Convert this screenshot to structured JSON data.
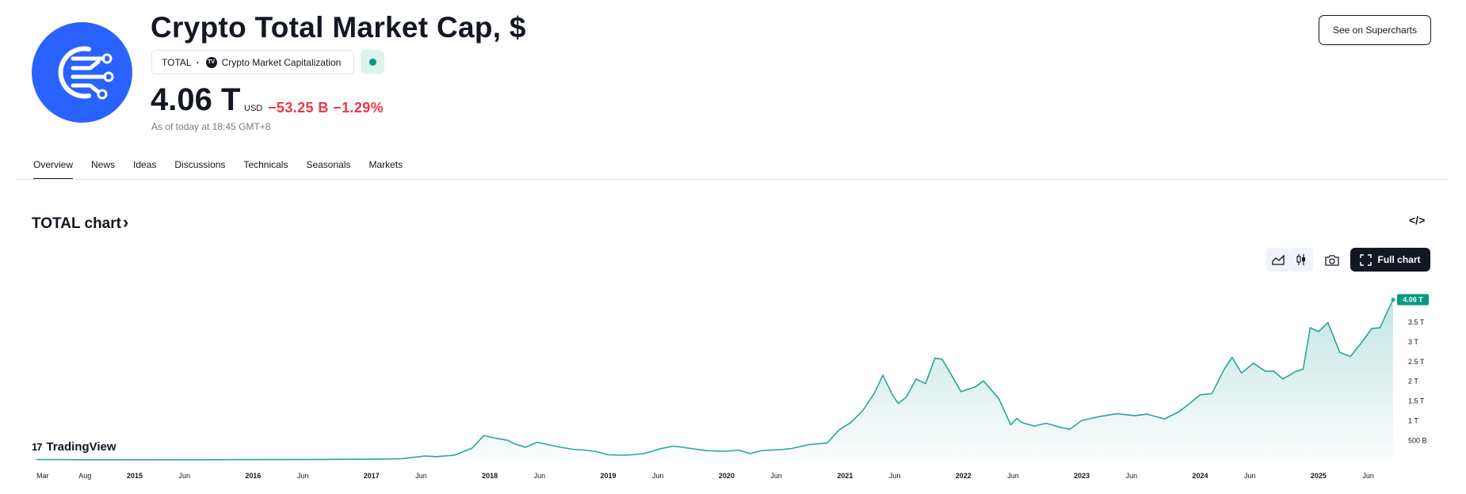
{
  "header": {
    "title": "Crypto Total Market Cap, $",
    "symbol": "TOTAL",
    "source": "Crypto Market Capitalization",
    "price": "4.06 T",
    "currency": "USD",
    "change": "−53.25 B −1.29%",
    "as_of": "As of today at 18:45 GMT+8",
    "supercharts_button": "See on Supercharts",
    "status_color": "#089981",
    "logo_color": "#2962ff"
  },
  "tabs": [
    {
      "label": "Overview"
    },
    {
      "label": "News"
    },
    {
      "label": "Ideas"
    },
    {
      "label": "Discussions"
    },
    {
      "label": "Technicals"
    },
    {
      "label": "Seasonals"
    },
    {
      "label": "Markets"
    }
  ],
  "section": {
    "title": "TOTAL chart",
    "chevron": "›",
    "embed_icon": "</>",
    "full_chart_label": "Full chart",
    "toolbar_icons": [
      "area-chart-icon",
      "candles-icon",
      "camera-icon",
      "fullscreen-icon"
    ]
  },
  "branding": {
    "tradingview": "TradingView"
  },
  "chart_data": {
    "type": "area",
    "title": "",
    "series_color": "#26a69a",
    "last_label": "4.06 T",
    "y_ticks": [
      {
        "value": 0.5,
        "label": "500 B"
      },
      {
        "value": 1.0,
        "label": "1 T"
      },
      {
        "value": 1.5,
        "label": "1.5 T"
      },
      {
        "value": 2.0,
        "label": "2 T"
      },
      {
        "value": 2.5,
        "label": "2.5 T"
      },
      {
        "value": 3.0,
        "label": "3 T"
      },
      {
        "value": 3.5,
        "label": "3.5 T"
      }
    ],
    "ylim": [
      0,
      4.15
    ],
    "xlim": [
      2014.17,
      2025.63
    ],
    "x_ticks": [
      {
        "value": 2014.17,
        "label": "Mar"
      },
      {
        "value": 2014.58,
        "label": "Aug"
      },
      {
        "value": 2015.0,
        "label": "2015"
      },
      {
        "value": 2015.42,
        "label": "Jun"
      },
      {
        "value": 2016.0,
        "label": "2016"
      },
      {
        "value": 2016.42,
        "label": "Jun"
      },
      {
        "value": 2017.0,
        "label": "2017"
      },
      {
        "value": 2017.42,
        "label": "Jun"
      },
      {
        "value": 2018.0,
        "label": "2018"
      },
      {
        "value": 2018.42,
        "label": "Jun"
      },
      {
        "value": 2019.0,
        "label": "2019"
      },
      {
        "value": 2019.42,
        "label": "Jun"
      },
      {
        "value": 2020.0,
        "label": "2020"
      },
      {
        "value": 2020.42,
        "label": "Jun"
      },
      {
        "value": 2021.0,
        "label": "2021"
      },
      {
        "value": 2021.42,
        "label": "Jun"
      },
      {
        "value": 2022.0,
        "label": "2022"
      },
      {
        "value": 2022.42,
        "label": "Jun"
      },
      {
        "value": 2023.0,
        "label": "2023"
      },
      {
        "value": 2023.42,
        "label": "Jun"
      },
      {
        "value": 2024.0,
        "label": "2024"
      },
      {
        "value": 2024.42,
        "label": "Jun"
      },
      {
        "value": 2025.0,
        "label": "2025"
      },
      {
        "value": 2025.42,
        "label": "Jun"
      }
    ],
    "points": [
      [
        2014.17,
        0.01
      ],
      [
        2014.6,
        0.006
      ],
      [
        2015.0,
        0.005
      ],
      [
        2015.5,
        0.006
      ],
      [
        2016.0,
        0.008
      ],
      [
        2016.5,
        0.012
      ],
      [
        2017.0,
        0.018
      ],
      [
        2017.25,
        0.03
      ],
      [
        2017.45,
        0.1
      ],
      [
        2017.55,
        0.085
      ],
      [
        2017.7,
        0.12
      ],
      [
        2017.85,
        0.3
      ],
      [
        2017.95,
        0.62
      ],
      [
        2018.05,
        0.55
      ],
      [
        2018.15,
        0.5
      ],
      [
        2018.2,
        0.42
      ],
      [
        2018.3,
        0.32
      ],
      [
        2018.4,
        0.45
      ],
      [
        2018.5,
        0.38
      ],
      [
        2018.6,
        0.32
      ],
      [
        2018.7,
        0.27
      ],
      [
        2018.8,
        0.25
      ],
      [
        2018.9,
        0.21
      ],
      [
        2019.0,
        0.13
      ],
      [
        2019.15,
        0.12
      ],
      [
        2019.3,
        0.16
      ],
      [
        2019.45,
        0.29
      ],
      [
        2019.55,
        0.35
      ],
      [
        2019.7,
        0.29
      ],
      [
        2019.85,
        0.23
      ],
      [
        2020.0,
        0.22
      ],
      [
        2020.1,
        0.25
      ],
      [
        2020.2,
        0.16
      ],
      [
        2020.3,
        0.24
      ],
      [
        2020.45,
        0.26
      ],
      [
        2020.55,
        0.29
      ],
      [
        2020.7,
        0.39
      ],
      [
        2020.85,
        0.43
      ],
      [
        2020.95,
        0.76
      ],
      [
        2021.05,
        0.95
      ],
      [
        2021.15,
        1.25
      ],
      [
        2021.25,
        1.7
      ],
      [
        2021.32,
        2.15
      ],
      [
        2021.4,
        1.65
      ],
      [
        2021.45,
        1.43
      ],
      [
        2021.52,
        1.6
      ],
      [
        2021.6,
        2.05
      ],
      [
        2021.68,
        1.93
      ],
      [
        2021.76,
        2.58
      ],
      [
        2021.82,
        2.55
      ],
      [
        2021.9,
        2.15
      ],
      [
        2021.98,
        1.73
      ],
      [
        2022.1,
        1.85
      ],
      [
        2022.17,
        2.0
      ],
      [
        2022.3,
        1.55
      ],
      [
        2022.4,
        0.89
      ],
      [
        2022.45,
        1.05
      ],
      [
        2022.5,
        0.94
      ],
      [
        2022.6,
        0.86
      ],
      [
        2022.7,
        0.93
      ],
      [
        2022.8,
        0.84
      ],
      [
        2022.9,
        0.78
      ],
      [
        2023.0,
        1.0
      ],
      [
        2023.15,
        1.1
      ],
      [
        2023.3,
        1.17
      ],
      [
        2023.45,
        1.12
      ],
      [
        2023.55,
        1.16
      ],
      [
        2023.7,
        1.04
      ],
      [
        2023.82,
        1.22
      ],
      [
        2023.92,
        1.45
      ],
      [
        2024.0,
        1.65
      ],
      [
        2024.1,
        1.68
      ],
      [
        2024.2,
        2.28
      ],
      [
        2024.27,
        2.6
      ],
      [
        2024.35,
        2.2
      ],
      [
        2024.45,
        2.45
      ],
      [
        2024.55,
        2.25
      ],
      [
        2024.62,
        2.25
      ],
      [
        2024.7,
        2.05
      ],
      [
        2024.8,
        2.23
      ],
      [
        2024.87,
        2.3
      ],
      [
        2024.93,
        3.35
      ],
      [
        2025.0,
        3.25
      ],
      [
        2025.08,
        3.48
      ],
      [
        2025.18,
        2.72
      ],
      [
        2025.27,
        2.62
      ],
      [
        2025.37,
        3.0
      ],
      [
        2025.45,
        3.33
      ],
      [
        2025.52,
        3.35
      ],
      [
        2025.58,
        3.75
      ],
      [
        2025.63,
        4.06
      ]
    ]
  }
}
